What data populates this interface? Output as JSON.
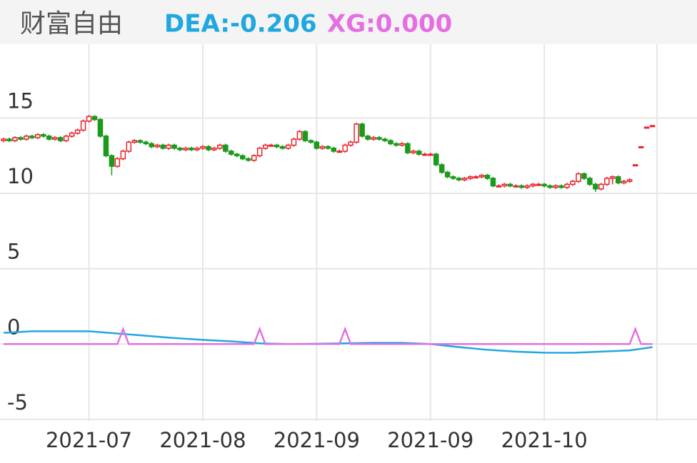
{
  "chart_data": {
    "type": "candlestick",
    "title": "财富自由",
    "categories": [
      null,
      null,
      null,
      null,
      null,
      null,
      null,
      null,
      null,
      null,
      null,
      null,
      null,
      null,
      null,
      "2021-07",
      null,
      null,
      null,
      null,
      null,
      null,
      null,
      null,
      null,
      null,
      null,
      null,
      null,
      null,
      null,
      null,
      null,
      null,
      null,
      "2021-08",
      null,
      null,
      null,
      null,
      null,
      null,
      null,
      null,
      null,
      null,
      null,
      null,
      null,
      null,
      null,
      null,
      null,
      null,
      null,
      "2021-09",
      null,
      null,
      null,
      null,
      null,
      null,
      null,
      null,
      null,
      null,
      null,
      null,
      null,
      null,
      null,
      null,
      null,
      null,
      null,
      "2021-09",
      null,
      null,
      null,
      null,
      null,
      null,
      null,
      null,
      null,
      null,
      null,
      null,
      null,
      null,
      null,
      null,
      null,
      null,
      null,
      "2021-10",
      null,
      null,
      null,
      null,
      null,
      null,
      null,
      null,
      null,
      null,
      null,
      null,
      null,
      null,
      null,
      null,
      null,
      null,
      null
    ],
    "open": [
      13.5,
      13.6,
      13.5,
      13.7,
      13.6,
      13.8,
      13.7,
      13.9,
      13.8,
      13.6,
      13.7,
      13.5,
      13.8,
      14.0,
      14.2,
      14.8,
      15.1,
      14.9,
      13.8,
      12.5,
      11.8,
      12.3,
      12.8,
      13.4,
      13.5,
      13.4,
      13.3,
      13.1,
      13.2,
      13.0,
      13.2,
      13.0,
      12.9,
      13.0,
      12.9,
      13.0,
      13.1,
      12.9,
      13.0,
      13.2,
      12.8,
      12.6,
      12.5,
      12.3,
      12.2,
      12.5,
      13.0,
      13.2,
      13.2,
      13.1,
      13.0,
      13.2,
      13.6,
      14.1,
      13.5,
      13.4,
      13.0,
      13.1,
      13.0,
      12.8,
      12.8,
      13.2,
      13.4,
      14.6,
      13.8,
      13.6,
      13.7,
      13.6,
      13.5,
      13.3,
      13.2,
      13.3,
      12.7,
      12.8,
      12.6,
      12.6,
      12.6,
      11.9,
      11.4,
      11.1,
      11.0,
      10.9,
      11.0,
      11.1,
      11.1,
      11.2,
      11.0,
      10.5,
      10.5,
      10.6,
      10.5,
      10.5,
      10.4,
      10.5,
      10.6,
      10.6,
      10.5,
      10.4,
      10.5,
      10.4,
      10.6,
      10.8,
      11.3,
      11.0,
      10.6,
      10.3,
      10.6,
      11.0,
      11.1,
      10.7,
      10.8,
      11.9,
      13.1,
      14.4,
      14.5
    ],
    "close": [
      13.6,
      13.5,
      13.7,
      13.6,
      13.8,
      13.7,
      13.9,
      13.8,
      13.6,
      13.7,
      13.5,
      13.8,
      14.0,
      14.2,
      14.8,
      15.1,
      14.9,
      13.8,
      12.5,
      11.8,
      12.3,
      12.8,
      13.4,
      13.5,
      13.4,
      13.3,
      13.1,
      13.2,
      13.0,
      13.2,
      13.0,
      12.9,
      13.0,
      12.9,
      13.0,
      13.1,
      12.9,
      13.0,
      13.2,
      12.8,
      12.6,
      12.5,
      12.3,
      12.2,
      12.5,
      13.0,
      13.2,
      13.2,
      13.1,
      13.0,
      13.2,
      13.6,
      14.1,
      13.5,
      13.4,
      13.0,
      13.1,
      13.0,
      12.8,
      12.8,
      13.2,
      13.4,
      14.6,
      13.8,
      13.6,
      13.7,
      13.6,
      13.5,
      13.3,
      13.2,
      13.3,
      12.7,
      12.8,
      12.6,
      12.6,
      12.6,
      11.9,
      11.4,
      11.1,
      11.0,
      10.9,
      11.0,
      11.1,
      11.1,
      11.2,
      11.0,
      10.5,
      10.5,
      10.6,
      10.5,
      10.5,
      10.4,
      10.5,
      10.6,
      10.6,
      10.5,
      10.4,
      10.5,
      10.4,
      10.6,
      10.8,
      11.3,
      11.0,
      10.6,
      10.3,
      10.6,
      11.0,
      11.1,
      10.7,
      10.8,
      10.9,
      11.9,
      13.1,
      14.4,
      14.5
    ],
    "high": [
      13.7,
      13.7,
      13.8,
      13.8,
      13.9,
      13.9,
      14.0,
      14.0,
      13.9,
      13.8,
      13.8,
      13.9,
      14.1,
      14.3,
      14.9,
      15.2,
      15.2,
      15.0,
      13.9,
      12.6,
      12.4,
      12.9,
      13.5,
      13.6,
      13.6,
      13.5,
      13.4,
      13.3,
      13.3,
      13.3,
      13.3,
      13.1,
      13.1,
      13.1,
      13.1,
      13.2,
      13.2,
      13.1,
      13.3,
      13.3,
      12.9,
      12.7,
      12.6,
      12.4,
      12.6,
      13.1,
      13.3,
      13.3,
      13.3,
      13.2,
      13.3,
      13.7,
      14.2,
      14.2,
      13.6,
      13.5,
      13.2,
      13.2,
      13.1,
      12.9,
      13.3,
      13.5,
      14.7,
      14.7,
      13.9,
      13.8,
      13.8,
      13.7,
      13.6,
      13.4,
      13.4,
      13.4,
      12.9,
      12.9,
      12.7,
      12.7,
      12.7,
      12.0,
      11.5,
      11.2,
      11.1,
      11.1,
      11.2,
      11.2,
      11.3,
      11.3,
      11.1,
      10.6,
      10.7,
      10.7,
      10.6,
      10.6,
      10.6,
      10.7,
      10.7,
      10.7,
      10.6,
      10.6,
      10.6,
      10.7,
      10.9,
      11.4,
      11.4,
      11.1,
      10.7,
      10.7,
      11.1,
      11.2,
      11.2,
      10.9,
      11.0,
      11.9,
      13.1,
      14.4,
      14.5
    ],
    "low": [
      13.4,
      13.4,
      13.4,
      13.5,
      13.5,
      13.6,
      13.6,
      13.7,
      13.5,
      13.5,
      13.4,
      13.4,
      13.7,
      13.9,
      14.1,
      14.7,
      14.8,
      13.7,
      12.4,
      11.2,
      11.7,
      12.2,
      12.7,
      13.3,
      13.3,
      13.2,
      13.0,
      13.0,
      12.9,
      12.9,
      12.9,
      12.8,
      12.8,
      12.8,
      12.8,
      12.9,
      12.8,
      12.8,
      12.9,
      12.7,
      12.5,
      12.4,
      12.2,
      12.1,
      12.1,
      12.4,
      12.9,
      13.1,
      13.0,
      12.9,
      12.9,
      13.1,
      13.5,
      13.4,
      13.3,
      12.9,
      12.9,
      12.9,
      12.7,
      12.7,
      12.7,
      13.1,
      13.3,
      13.7,
      13.5,
      13.5,
      13.5,
      13.4,
      13.2,
      13.1,
      13.1,
      12.6,
      12.6,
      12.5,
      12.5,
      12.5,
      11.8,
      11.3,
      11.0,
      10.9,
      10.8,
      10.8,
      10.9,
      11.0,
      11.0,
      10.9,
      10.4,
      10.4,
      10.4,
      10.4,
      10.4,
      10.3,
      10.3,
      10.4,
      10.5,
      10.4,
      10.3,
      10.3,
      10.3,
      10.3,
      10.5,
      10.7,
      10.9,
      10.5,
      10.1,
      10.2,
      10.5,
      10.6,
      10.6,
      10.6,
      10.7,
      11.9,
      13.1,
      14.4,
      14.5
    ],
    "up_color": "#e8232b",
    "down_color": "#1b9a1b",
    "series": [
      {
        "label": "DEA:-0.206",
        "color": "#1fa8e0",
        "x": [
          0,
          5,
          10,
          15,
          20,
          25,
          30,
          35,
          40,
          45,
          50,
          55,
          60,
          65,
          70,
          75,
          80,
          85,
          90,
          95,
          100,
          105,
          110,
          114
        ],
        "values": [
          0.75,
          0.85,
          0.85,
          0.85,
          0.7,
          0.55,
          0.4,
          0.28,
          0.18,
          0.05,
          0.0,
          0.02,
          0.05,
          0.08,
          0.08,
          0.0,
          -0.2,
          -0.38,
          -0.5,
          -0.57,
          -0.58,
          -0.5,
          -0.42,
          -0.206
        ]
      },
      {
        "label": "XG:0.000",
        "color": "#e46fe2",
        "x": [
          0,
          20,
          21,
          22,
          44,
          45,
          46,
          59,
          60,
          61,
          110,
          111,
          112,
          114
        ],
        "values": [
          0,
          0,
          1,
          0,
          0,
          1,
          0,
          0,
          1,
          0,
          0,
          1,
          0,
          0
        ]
      }
    ],
    "ylim": [
      -5.1,
      19.9
    ],
    "yticks": [
      15,
      10,
      5,
      0,
      -5
    ],
    "grid": true
  }
}
